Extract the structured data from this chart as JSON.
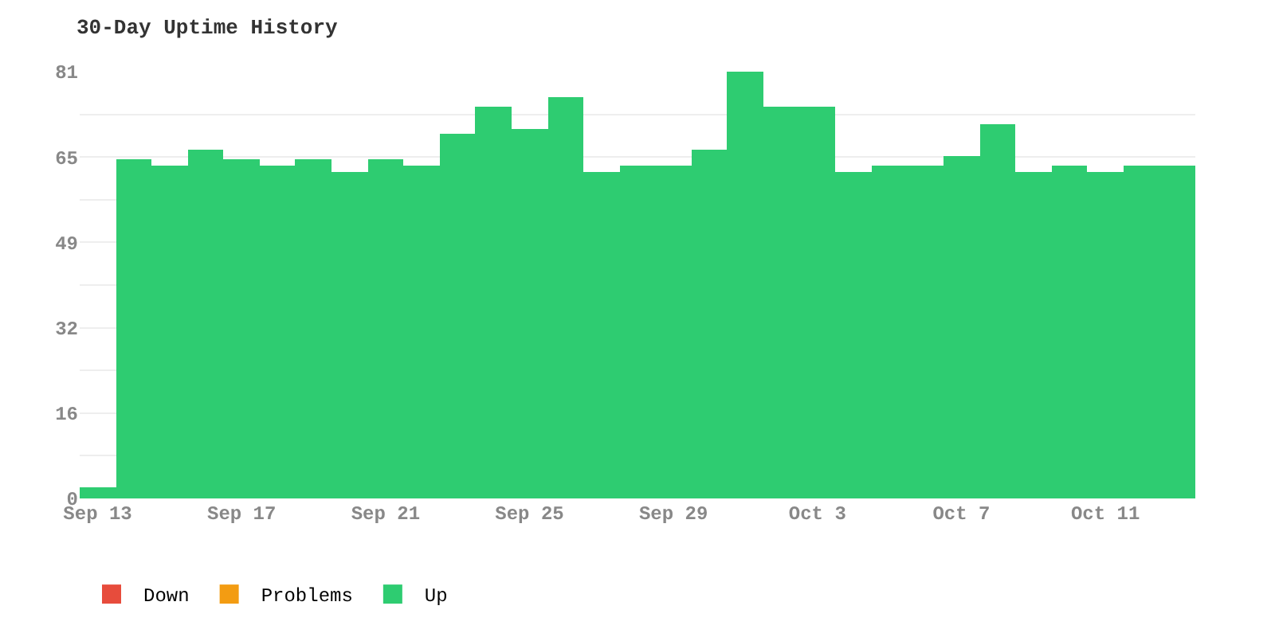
{
  "chart_data": {
    "type": "bar",
    "title": "30-Day Uptime History",
    "categories": [
      "Sep 13",
      null,
      null,
      null,
      "Sep 17",
      null,
      null,
      null,
      "Sep 21",
      null,
      null,
      null,
      "Sep 25",
      null,
      null,
      null,
      "Sep 29",
      null,
      null,
      null,
      "Oct 3",
      null,
      null,
      null,
      "Oct 7",
      null,
      null,
      null,
      "Oct 11",
      null,
      null
    ],
    "series": [
      {
        "name": "Up",
        "color": "#2ecc71",
        "values": [
          2.2,
          64.3,
          63.2,
          66.2,
          64.3,
          63.2,
          64.3,
          62.1,
          64.3,
          63.2,
          69.1,
          74.3,
          70.2,
          76.1,
          62.1,
          63.2,
          63.2,
          66.2,
          81,
          74.3,
          74.3,
          62.1,
          63.2,
          63.2,
          65.1,
          71.0,
          62.1,
          63.2,
          62.1,
          63.2,
          63.2
        ]
      },
      {
        "name": "Problems",
        "color": "#f39c12",
        "values": [
          0,
          0,
          0,
          0,
          0,
          0,
          0,
          0,
          0,
          0,
          0,
          0,
          0,
          0,
          0,
          0,
          0,
          0,
          0,
          0,
          0,
          0,
          0,
          0,
          0,
          0,
          0,
          0,
          0,
          0,
          0
        ]
      },
      {
        "name": "Down",
        "color": "#e74c3c",
        "values": [
          0,
          0,
          0,
          0,
          0,
          0,
          0,
          0,
          0,
          0,
          0,
          0,
          0,
          0,
          0,
          0,
          0,
          0,
          0,
          0,
          0,
          0,
          0,
          0,
          0,
          0,
          0,
          0,
          0,
          0,
          0
        ]
      }
    ],
    "stacked": true,
    "ylim": [
      0,
      81
    ],
    "yticks": [
      0,
      {
        "value": 8.1,
        "label": null
      },
      {
        "value": 16.2,
        "label": "16"
      },
      {
        "value": 24.3,
        "label": null
      },
      {
        "value": 32.4,
        "label": "32"
      },
      {
        "value": 40.5,
        "label": null
      },
      {
        "value": 48.6,
        "label": "49"
      },
      {
        "value": 56.7,
        "label": null
      },
      {
        "value": 64.8,
        "label": "65"
      },
      {
        "value": 72.9,
        "label": null
      },
      81
    ],
    "grid": "y",
    "legend": "bottom left"
  }
}
